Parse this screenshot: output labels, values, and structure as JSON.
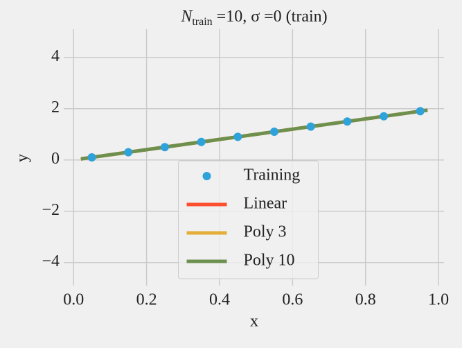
{
  "chart_data": {
    "type": "line",
    "title": "N",
    "title_subscript": "train",
    "title_rest": " =10, σ =0 (train)",
    "xlabel": "x",
    "ylabel": "y",
    "xlim": [
      -0.027,
      1.015
    ],
    "ylim": [
      -4.9,
      5.1
    ],
    "xticks": [
      {
        "value": 0,
        "label": "0.0"
      },
      {
        "value": 0.2,
        "label": "0.2"
      },
      {
        "value": 0.4,
        "label": "0.4"
      },
      {
        "value": 0.6,
        "label": "0.6"
      },
      {
        "value": 0.8,
        "label": "0.8"
      },
      {
        "value": 1,
        "label": "1.0"
      }
    ],
    "yticks": [
      {
        "value": -4,
        "label": "−4"
      },
      {
        "value": -2,
        "label": "−2"
      },
      0,
      2,
      4
    ],
    "grid": true,
    "legend": "lower center",
    "series": [
      {
        "name": "Training",
        "type": "scatter",
        "color": "#30a2da",
        "x": [
          0.05,
          0.15,
          0.25,
          0.35,
          0.45,
          0.55,
          0.65,
          0.75,
          0.85,
          0.95
        ],
        "values": [
          0.1,
          0.3,
          0.5,
          0.7,
          0.9,
          1.1,
          1.3,
          1.5,
          1.7,
          1.9
        ]
      },
      {
        "name": "Linear",
        "type": "line",
        "color": "#fc4f30",
        "x": [
          0.02,
          0.97
        ],
        "values": [
          0.04,
          1.94
        ]
      },
      {
        "name": "Poly 3",
        "type": "line",
        "color": "#e5ae38",
        "x": [
          0.02,
          0.97
        ],
        "values": [
          0.04,
          1.94
        ]
      },
      {
        "name": "Poly 10",
        "type": "line",
        "color": "#6d904f",
        "x": [
          0.02,
          0.97
        ],
        "values": [
          0.04,
          1.94
        ]
      }
    ]
  }
}
